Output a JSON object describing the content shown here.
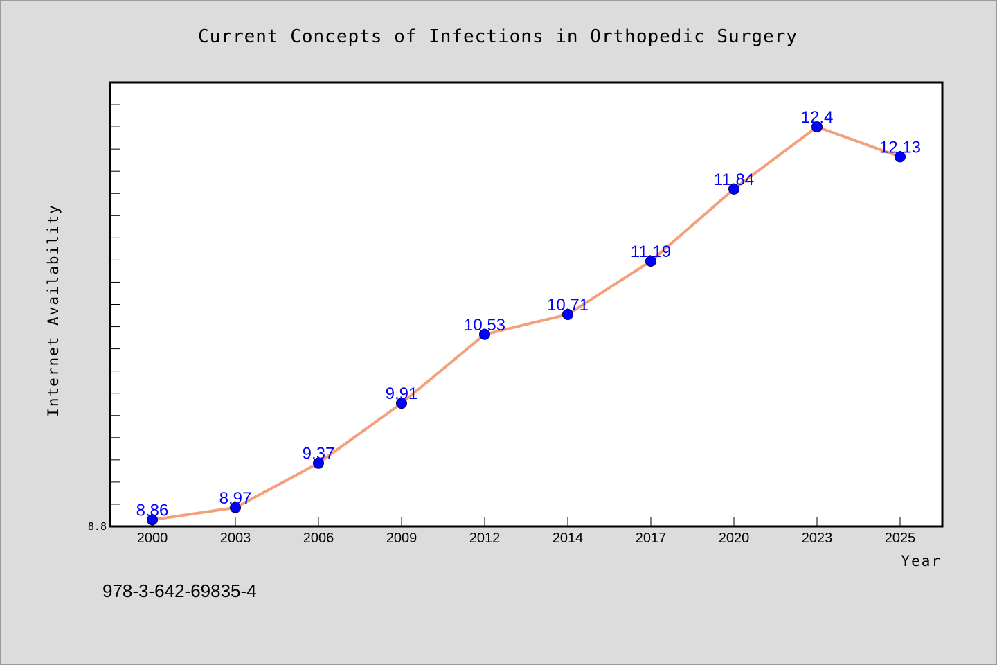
{
  "chart_data": {
    "type": "line",
    "title": "Current Concepts of Infections in Orthopedic Surgery",
    "xlabel": "Year",
    "ylabel": "Internet Availability",
    "categories": [
      "2000",
      "2003",
      "2006",
      "2009",
      "2012",
      "2014",
      "2017",
      "2020",
      "2023",
      "2025"
    ],
    "series": [
      {
        "values": [
          8.86,
          8.97,
          9.37,
          9.91,
          10.53,
          10.71,
          11.19,
          11.84,
          12.4,
          12.13
        ],
        "labels": [
          "8.86",
          "8.97",
          "9.37",
          "9.91",
          "10.53",
          "10.71",
          "11.19",
          "11.84",
          "12.4",
          "12.13"
        ]
      }
    ],
    "ylim": [
      8.8,
      12.8
    ],
    "yticks": [
      "8.8"
    ],
    "grid": false,
    "line_color": "#f4a07a",
    "marker_color": "#0000ff",
    "label_color": "#0000ff"
  },
  "footer": {
    "isbn": "978-3-642-69835-4"
  }
}
